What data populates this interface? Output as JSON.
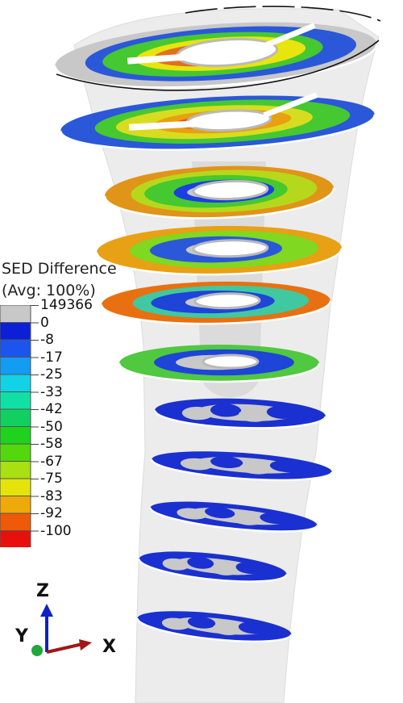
{
  "legend": {
    "title_line1": "SED Difference",
    "title_line2": "(Avg: 100%)",
    "entries": [
      {
        "label": "149366",
        "color": "#c8c8c8"
      },
      {
        "label": "0",
        "color": "#0a1fd6"
      },
      {
        "label": "-8",
        "color": "#1c55ee"
      },
      {
        "label": "-17",
        "color": "#129cf2"
      },
      {
        "label": "-25",
        "color": "#12d2e6"
      },
      {
        "label": "-33",
        "color": "#10dfa6"
      },
      {
        "label": "-42",
        "color": "#12d060"
      },
      {
        "label": "-50",
        "color": "#1fd21c"
      },
      {
        "label": "-58",
        "color": "#52d80c"
      },
      {
        "label": "-67",
        "color": "#a8e012"
      },
      {
        "label": "-75",
        "color": "#e4e40a"
      },
      {
        "label": "-83",
        "color": "#eeaa08"
      },
      {
        "label": "-92",
        "color": "#ee5a08"
      },
      {
        "label": "-100",
        "color": "#e8100c"
      }
    ]
  },
  "triad": {
    "z_label": "Z",
    "y_label": "Y",
    "x_label": "X",
    "z_color": "#1020c8",
    "x_color": "#a01818",
    "y_color": "#22a83a"
  },
  "model": {
    "bone_color": "#ececec",
    "cut_color": "#b9b9b9",
    "slices": [
      {
        "name": "slice-1",
        "colors": [
          "#c8c8c8",
          "#2a58d8",
          "#46c830",
          "#e8e40e",
          "#e07020",
          "#e81a0c"
        ]
      },
      {
        "name": "slice-2",
        "colors": [
          "#2a58d8",
          "#46c830",
          "#d8dc20",
          "#e8a010",
          "#e8500c"
        ]
      },
      {
        "name": "slice-3",
        "colors": [
          "#e09418",
          "#b6d81c",
          "#46c830",
          "#1a40e0",
          "#c8c8c8"
        ]
      },
      {
        "name": "slice-4",
        "colors": [
          "#e8a014",
          "#80d820",
          "#2a58d8",
          "#c8c8c8"
        ]
      },
      {
        "name": "slice-5",
        "colors": [
          "#e87010",
          "#40c8a0",
          "#1e44d8",
          "#c8c8c8"
        ]
      },
      {
        "name": "slice-6",
        "colors": [
          "#50c840",
          "#1e44d8",
          "#c8c8c8"
        ]
      },
      {
        "name": "slice-7",
        "colors": [
          "#1a30d0",
          "#c8c8c8"
        ]
      },
      {
        "name": "slice-8",
        "colors": [
          "#1a30d0",
          "#c8c8c8"
        ]
      },
      {
        "name": "slice-9",
        "colors": [
          "#1a30d0",
          "#c8c8c8"
        ]
      },
      {
        "name": "slice-10",
        "colors": [
          "#1a30d0",
          "#c8c8c8"
        ]
      },
      {
        "name": "slice-11",
        "colors": [
          "#1a30d0",
          "#c8c8c8"
        ]
      }
    ]
  }
}
